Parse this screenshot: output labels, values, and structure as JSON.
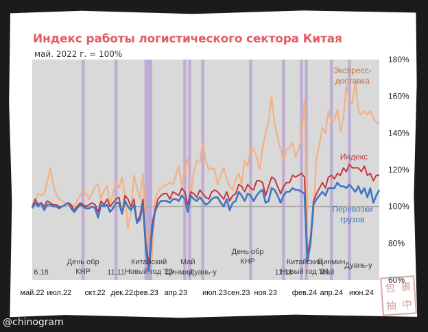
{
  "title": "Индекс работы логистического сектора Китая",
  "subtitle": "май. 2022 г. = 100%",
  "credit": "@chinogram",
  "stamp_chars": [
    "包",
    "裹",
    "抽",
    "中"
  ],
  "colors": {
    "express": "#f2b183",
    "index": "#c4373c",
    "freight": "#3f76c1",
    "index_label": "#c4373c",
    "express_label": "#c0703d",
    "freight_label": "#3f76c1",
    "plot_bg": "#d9d9d9",
    "event_band": "#b9a5d2",
    "reference_line": "#a6a6a6"
  },
  "chart_data": {
    "type": "line",
    "x_unit": "week",
    "ylim": [
      60,
      180
    ],
    "y_ticks": [
      "180%",
      "160%",
      "140%",
      "120%",
      "100%",
      "80%",
      "60%"
    ],
    "y_tick_values": [
      180,
      160,
      140,
      120,
      100,
      80,
      60
    ],
    "reference_value": 100,
    "x_tick_labels": [
      "май.22",
      "июл.22",
      "окт.22",
      "дек.22",
      "фев.23",
      "апр.23",
      "июл.23",
      "сен.23",
      "ноя.23",
      "фев.24",
      "апр.24",
      "июн.24"
    ],
    "x_tick_weeks": [
      0,
      9,
      21,
      30,
      38,
      48,
      61,
      69,
      78,
      91,
      100,
      110
    ],
    "event_weeks": [
      17,
      28,
      38,
      39,
      39.6,
      51,
      52.6,
      57,
      73,
      84,
      90,
      91.6,
      100,
      106
    ],
    "event_labels": [
      {
        "lines": [
          "6.18"
        ],
        "week": 0.5,
        "row": 1,
        "anchor": "start"
      },
      {
        "lines": [
          "День обр",
          "КНР"
        ],
        "week": 17,
        "row": 0,
        "anchor": "middle"
      },
      {
        "lines": [
          "11.11"
        ],
        "week": 28,
        "row": 1,
        "anchor": "middle"
      },
      {
        "lines": [
          "Китайский",
          "Новый год '23"
        ],
        "week": 39,
        "row": 0,
        "anchor": "middle"
      },
      {
        "lines": [
          "Май"
        ],
        "week": 52,
        "row": 0,
        "anchor": "middle"
      },
      {
        "lines": [
          "Цинмин"
        ],
        "week": 49,
        "row": 1,
        "anchor": "middle"
      },
      {
        "lines": [
          "Дуань-у"
        ],
        "week": 57,
        "row": 1,
        "anchor": "middle"
      },
      {
        "lines": [
          "День обр",
          "КНР"
        ],
        "week": 72,
        "row": -1,
        "anchor": "middle"
      },
      {
        "lines": [
          "11.11"
        ],
        "week": 84,
        "row": 1,
        "anchor": "middle"
      },
      {
        "lines": [
          "Китайский",
          "Новый год '24"
        ],
        "week": 91,
        "row": 0,
        "anchor": "middle"
      },
      {
        "lines": [
          "Цинмин"
        ],
        "week": 100,
        "row": 0,
        "anchor": "middle"
      },
      {
        "lines": [
          "Май"
        ],
        "week": 98.5,
        "row": 1,
        "anchor": "middle"
      },
      {
        "lines": [
          "Дуань-у"
        ],
        "week": 109,
        "row": 0.5,
        "anchor": "middle"
      }
    ],
    "series": [
      {
        "name": "Экспресс-доставка",
        "color_key": "express",
        "values": [
          100,
          103,
          107,
          106,
          107,
          113,
          121,
          112,
          107,
          104,
          103,
          102,
          100,
          101,
          100,
          103,
          106,
          109,
          107,
          104,
          107,
          111,
          112,
          104,
          109,
          111,
          101,
          107,
          114,
          110,
          116,
          106,
          88,
          97,
          117,
          110,
          104,
          118,
          85,
          67,
          72,
          104,
          108,
          110,
          111,
          112,
          113,
          112,
          117,
          122,
          111,
          120,
          126,
          106,
          119,
          125,
          124,
          135,
          125,
          120,
          121,
          120,
          112,
          117,
          121,
          115,
          111,
          109,
          115,
          118,
          112,
          125,
          122,
          132,
          131,
          127,
          120,
          132,
          140,
          146,
          160,
          145,
          138,
          131,
          125,
          131,
          132,
          135,
          127,
          131,
          137,
          158,
          75,
          80,
          95,
          127,
          134,
          143,
          140,
          152,
          146,
          147,
          153,
          141,
          148,
          166,
          158,
          156,
          168,
          152,
          150,
          152,
          150,
          152,
          148,
          146,
          145
        ]
      },
      {
        "name": "Индекс",
        "color_key": "index",
        "values": [
          100,
          104,
          101,
          102,
          100,
          103,
          102,
          101,
          101,
          100,
          100,
          101,
          102,
          101,
          98,
          100,
          102,
          101,
          100,
          101,
          102,
          101,
          97,
          103,
          101,
          104,
          100,
          102,
          104,
          105,
          96,
          106,
          104,
          100,
          104,
          92,
          95,
          104,
          80,
          68,
          90,
          98,
          104,
          106,
          107,
          107,
          104,
          108,
          107,
          106,
          110,
          108,
          101,
          108,
          107,
          105,
          109,
          107,
          105,
          104,
          108,
          109,
          108,
          106,
          104,
          108,
          103,
          106,
          107,
          112,
          111,
          108,
          112,
          110,
          109,
          114,
          114,
          113,
          106,
          111,
          116,
          115,
          111,
          107,
          111,
          113,
          113,
          117,
          116,
          117,
          118,
          116,
          73,
          83,
          103,
          107,
          110,
          113,
          110,
          116,
          117,
          115,
          118,
          117,
          121,
          119,
          123,
          121,
          121,
          121,
          119,
          122,
          117,
          118,
          114,
          117,
          117
        ]
      },
      {
        "name": "Перевозки грузов",
        "color_key": "freight",
        "values": [
          99,
          102,
          100,
          102,
          98,
          101,
          101,
          100,
          100,
          99,
          100,
          101,
          102,
          99,
          97,
          99,
          101,
          100,
          99,
          99,
          100,
          99,
          94,
          101,
          100,
          101,
          97,
          99,
          102,
          102,
          96,
          103,
          100,
          98,
          101,
          91,
          93,
          101,
          76,
          65,
          85,
          97,
          101,
          103,
          103,
          103,
          102,
          104,
          104,
          103,
          106,
          104,
          97,
          106,
          104,
          103,
          105,
          103,
          101,
          102,
          104,
          105,
          105,
          102,
          100,
          104,
          98,
          102,
          103,
          108,
          106,
          103,
          107,
          106,
          103,
          106,
          108,
          109,
          102,
          103,
          110,
          109,
          106,
          102,
          106,
          108,
          108,
          110,
          109,
          109,
          108,
          107,
          70,
          80,
          101,
          104,
          106,
          108,
          106,
          110,
          110,
          110,
          113,
          111,
          111,
          110,
          112,
          110,
          108,
          111,
          107,
          110,
          105,
          110,
          102,
          106,
          109
        ]
      }
    ],
    "series_labels": [
      {
        "lines": [
          "Экспресс-",
          "доставка"
        ],
        "color_key": "express_label",
        "week": 107,
        "value": 172.5
      },
      {
        "lines": [
          "Индекс"
        ],
        "color_key": "index_label",
        "week": 107.5,
        "value": 125.5
      },
      {
        "lines": [
          "Перевозки",
          "грузов"
        ],
        "color_key": "freight_label",
        "week": 107,
        "value": 97
      }
    ]
  }
}
